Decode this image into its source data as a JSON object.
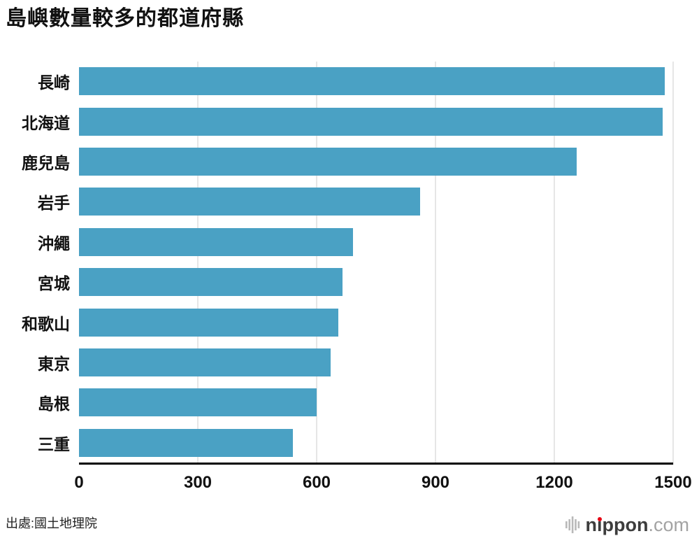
{
  "title": "島嶼數量較多的都道府縣",
  "chart_data": {
    "type": "bar",
    "orientation": "horizontal",
    "title": "島嶼數量較多的都道府縣",
    "categories": [
      "長崎",
      "北海道",
      "鹿兒島",
      "岩手",
      "沖繩",
      "宮城",
      "和歌山",
      "東京",
      "島根",
      "三重"
    ],
    "values": [
      1479,
      1473,
      1256,
      861,
      691,
      666,
      655,
      635,
      600,
      540
    ],
    "xlabel": "",
    "ylabel": "",
    "xlim": [
      0,
      1500
    ],
    "xticks": [
      0,
      300,
      600,
      900,
      1200,
      1500
    ],
    "grid": true,
    "legend": "none",
    "bar_color": "#4aa1c4",
    "gridline_color": "#cccccc",
    "axis_color": "#000000"
  },
  "source": "出處:國土地理院",
  "logo": {
    "name": "nippon",
    "tld": ".com",
    "accent": "#e60012",
    "icon_color": "#b9b9b9"
  }
}
